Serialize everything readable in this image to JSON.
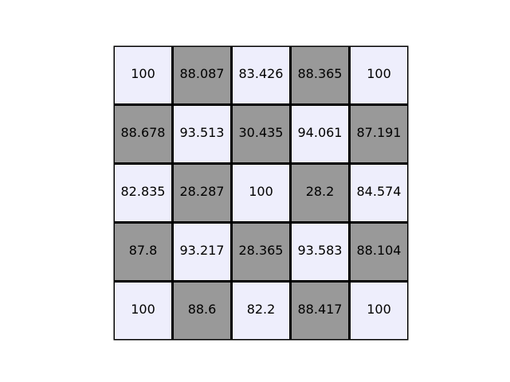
{
  "chart_data": {
    "type": "table",
    "title": "",
    "xlabel": "",
    "ylabel": "",
    "rows": [
      [
        "100",
        "88.087",
        "83.426",
        "88.365",
        "100"
      ],
      [
        "88.678",
        "93.513",
        "30.435",
        "94.061",
        "87.191"
      ],
      [
        "82.835",
        "28.287",
        "100",
        "28.2",
        "84.574"
      ],
      [
        "87.8",
        "93.217",
        "28.365",
        "93.583",
        "88.104"
      ],
      [
        "100",
        "88.6",
        "82.2",
        "88.417",
        "100"
      ]
    ],
    "cell_colors": {
      "light": "#eeeefc",
      "dark": "#999999",
      "border": "#000000"
    },
    "pattern": "checkerboard"
  }
}
